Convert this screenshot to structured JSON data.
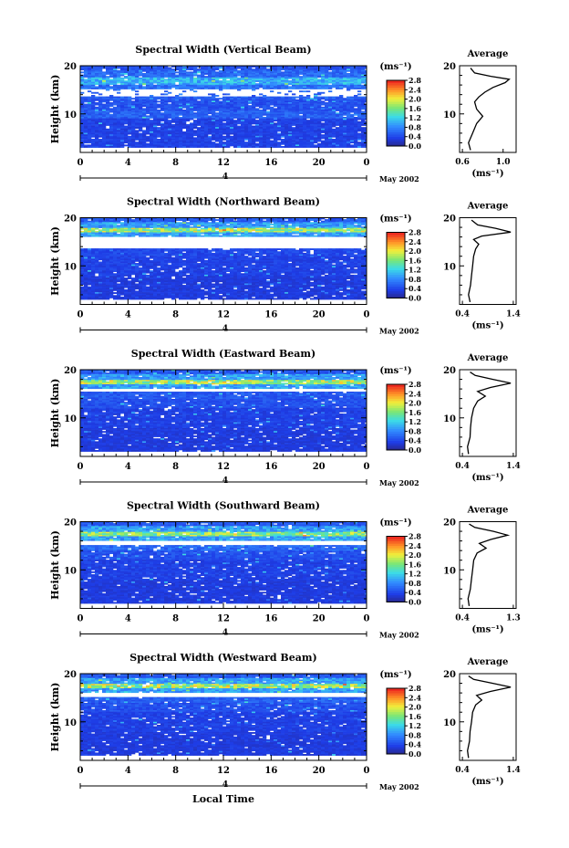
{
  "figure": {
    "date_label": "May 2002",
    "xlabel": "Local Time",
    "date_marker": "4"
  },
  "chart_data": [
    {
      "type": "heatmap",
      "title": "Spectral Width (Vertical Beam)",
      "xlabel": "",
      "ylabel": "Height (km)",
      "xlim": [
        0,
        24
      ],
      "ylim": [
        2,
        20
      ],
      "x_ticks": [
        "0",
        "4",
        "8",
        "12",
        "16",
        "20",
        "0"
      ],
      "y_ticks": [
        "10",
        "20"
      ],
      "colorbar": {
        "unit": "(ms⁻¹)",
        "ticks": [
          "0.0",
          "0.4",
          "0.8",
          "1.2",
          "1.6",
          "2.0",
          "2.4",
          "2.8"
        ],
        "range": [
          0,
          2.8
        ]
      },
      "rows": [
        {
          "h": [
            3,
            9
          ],
          "v": 0.35
        },
        {
          "h": [
            9,
            10.5
          ],
          "v": 0.55
        },
        {
          "h": [
            10.5,
            13
          ],
          "v": 0.45
        },
        {
          "h": [
            13,
            14.5
          ],
          "v": 0.55
        },
        {
          "h": [
            14.5,
            16
          ],
          "v": 0.65
        },
        {
          "h": [
            16,
            17.5
          ],
          "v": 1.0
        },
        {
          "h": [
            17.5,
            19
          ],
          "v": 0.6
        },
        {
          "h": [
            19,
            20
          ],
          "v": 0.45
        }
      ],
      "gaps": [
        [
          13.5,
          15.2
        ]
      ],
      "average": {
        "label": "Average",
        "xlim": [
          0.6,
          1.1
        ],
        "x_ticks": [
          "0.6",
          "1.0"
        ],
        "xlabel": "(ms⁻¹)",
        "profile": [
          [
            2.5,
            0.68
          ],
          [
            4,
            0.66
          ],
          [
            6,
            0.7
          ],
          [
            8,
            0.74
          ],
          [
            9.5,
            0.8
          ],
          [
            10,
            0.78
          ],
          [
            11,
            0.74
          ],
          [
            12.5,
            0.72
          ],
          [
            13.5,
            0.76
          ],
          [
            14.5,
            0.82
          ],
          [
            15.5,
            0.9
          ],
          [
            16.5,
            1.02
          ],
          [
            17.2,
            1.06
          ],
          [
            17.8,
            0.88
          ],
          [
            18.5,
            0.72
          ],
          [
            19.5,
            0.68
          ]
        ]
      }
    },
    {
      "type": "heatmap",
      "title": "Spectral Width (Northward Beam)",
      "xlabel": "",
      "ylabel": "Height (km)",
      "xlim": [
        0,
        24
      ],
      "ylim": [
        2,
        20
      ],
      "x_ticks": [
        "0",
        "4",
        "8",
        "12",
        "16",
        "20",
        "0"
      ],
      "y_ticks": [
        "10",
        "20"
      ],
      "colorbar": {
        "unit": "(ms⁻¹)",
        "ticks": [
          "0.0",
          "0.4",
          "0.8",
          "1.2",
          "1.6",
          "2.0",
          "2.4",
          "2.8"
        ],
        "range": [
          0,
          2.8
        ]
      },
      "rows": [
        {
          "h": [
            3,
            8
          ],
          "v": 0.3
        },
        {
          "h": [
            8,
            12
          ],
          "v": 0.35
        },
        {
          "h": [
            12,
            13.5
          ],
          "v": 0.4
        },
        {
          "h": [
            16,
            17
          ],
          "v": 0.9
        },
        {
          "h": [
            17,
            18
          ],
          "v": 1.7
        },
        {
          "h": [
            18,
            19
          ],
          "v": 0.9
        },
        {
          "h": [
            19,
            20
          ],
          "v": 0.5
        }
      ],
      "gaps": [
        [
          13.5,
          16.0
        ]
      ],
      "average": {
        "label": "Average",
        "xlim": [
          0.4,
          1.4
        ],
        "x_ticks": [
          "0.4",
          "1.4"
        ],
        "xlabel": "(ms⁻¹)",
        "profile": [
          [
            2.5,
            0.55
          ],
          [
            4,
            0.52
          ],
          [
            6,
            0.56
          ],
          [
            8,
            0.58
          ],
          [
            10,
            0.6
          ],
          [
            12,
            0.62
          ],
          [
            13.5,
            0.66
          ],
          [
            14.5,
            0.72
          ],
          [
            15.5,
            0.62
          ],
          [
            16.2,
            0.78
          ],
          [
            17,
            1.35
          ],
          [
            17.8,
            1.05
          ],
          [
            18.5,
            0.7
          ],
          [
            19.5,
            0.58
          ]
        ]
      }
    },
    {
      "type": "heatmap",
      "title": "Spectral Width (Eastward Beam)",
      "xlabel": "",
      "ylabel": "Height (km)",
      "xlim": [
        0,
        24
      ],
      "ylim": [
        2,
        20
      ],
      "x_ticks": [
        "0",
        "4",
        "8",
        "12",
        "16",
        "20",
        "0"
      ],
      "y_ticks": [
        "10",
        "20"
      ],
      "colorbar": {
        "unit": "(ms⁻¹)",
        "ticks": [
          "0.0",
          "0.4",
          "0.8",
          "1.2",
          "1.6",
          "2.0",
          "2.4",
          "2.8"
        ],
        "range": [
          0,
          2.8
        ]
      },
      "rows": [
        {
          "h": [
            3,
            8
          ],
          "v": 0.3
        },
        {
          "h": [
            8,
            12
          ],
          "v": 0.35
        },
        {
          "h": [
            12,
            14
          ],
          "v": 0.45
        },
        {
          "h": [
            14,
            15.5
          ],
          "v": 0.5
        },
        {
          "h": [
            16,
            17
          ],
          "v": 0.9
        },
        {
          "h": [
            17,
            18
          ],
          "v": 1.7
        },
        {
          "h": [
            18,
            19
          ],
          "v": 0.9
        },
        {
          "h": [
            19,
            20
          ],
          "v": 0.5
        }
      ],
      "gaps": [
        [
          15.5,
          16.0
        ]
      ],
      "average": {
        "label": "Average",
        "xlim": [
          0.4,
          1.4
        ],
        "x_ticks": [
          "0.4",
          "1.4"
        ],
        "xlabel": "(ms⁻¹)",
        "profile": [
          [
            2.5,
            0.52
          ],
          [
            4,
            0.5
          ],
          [
            6,
            0.55
          ],
          [
            8,
            0.56
          ],
          [
            10,
            0.58
          ],
          [
            12,
            0.62
          ],
          [
            13.5,
            0.7
          ],
          [
            14.5,
            0.85
          ],
          [
            15.5,
            0.7
          ],
          [
            16.3,
            0.95
          ],
          [
            17.2,
            1.35
          ],
          [
            18,
            1.0
          ],
          [
            18.8,
            0.65
          ],
          [
            19.5,
            0.55
          ]
        ]
      }
    },
    {
      "type": "heatmap",
      "title": "Spectral Width (Southward Beam)",
      "xlabel": "",
      "ylabel": "Height (km)",
      "xlim": [
        0,
        24
      ],
      "ylim": [
        2,
        20
      ],
      "x_ticks": [
        "0",
        "4",
        "8",
        "12",
        "16",
        "20",
        "0"
      ],
      "y_ticks": [
        "10",
        "20"
      ],
      "colorbar": {
        "unit": "(ms⁻¹)",
        "ticks": [
          "0.0",
          "0.4",
          "0.8",
          "1.2",
          "1.6",
          "2.0",
          "2.4",
          "2.8"
        ],
        "range": [
          0,
          2.8
        ]
      },
      "rows": [
        {
          "h": [
            3,
            8
          ],
          "v": 0.3
        },
        {
          "h": [
            8,
            12
          ],
          "v": 0.35
        },
        {
          "h": [
            12,
            14
          ],
          "v": 0.45
        },
        {
          "h": [
            14,
            15
          ],
          "v": 0.6
        },
        {
          "h": [
            16,
            17
          ],
          "v": 0.9
        },
        {
          "h": [
            17,
            18
          ],
          "v": 1.6
        },
        {
          "h": [
            18,
            19
          ],
          "v": 0.9
        },
        {
          "h": [
            19,
            20
          ],
          "v": 0.5
        }
      ],
      "gaps": [
        [
          15.0,
          16.0
        ]
      ],
      "average": {
        "label": "Average",
        "xlim": [
          0.4,
          1.3
        ],
        "x_ticks": [
          "0.4",
          "1.3"
        ],
        "xlabel": "(ms⁻¹)",
        "profile": [
          [
            2.5,
            0.52
          ],
          [
            4,
            0.5
          ],
          [
            6,
            0.54
          ],
          [
            8,
            0.56
          ],
          [
            10,
            0.58
          ],
          [
            12,
            0.6
          ],
          [
            13.5,
            0.66
          ],
          [
            14.5,
            0.82
          ],
          [
            15.5,
            0.7
          ],
          [
            16.3,
            0.9
          ],
          [
            17.2,
            1.2
          ],
          [
            18,
            0.95
          ],
          [
            18.8,
            0.62
          ],
          [
            19.5,
            0.52
          ]
        ]
      }
    },
    {
      "type": "heatmap",
      "title": "Spectral Width (Westward Beam)",
      "xlabel": "Local Time",
      "ylabel": "Height (km)",
      "xlim": [
        0,
        24
      ],
      "ylim": [
        2,
        20
      ],
      "x_ticks": [
        "0",
        "4",
        "8",
        "12",
        "16",
        "20",
        "0"
      ],
      "y_ticks": [
        "10",
        "20"
      ],
      "colorbar": {
        "unit": "(ms⁻¹)",
        "ticks": [
          "0.0",
          "0.4",
          "0.8",
          "1.2",
          "1.6",
          "2.0",
          "2.4",
          "2.8"
        ],
        "range": [
          0,
          2.8
        ]
      },
      "rows": [
        {
          "h": [
            3,
            8
          ],
          "v": 0.3
        },
        {
          "h": [
            8,
            12
          ],
          "v": 0.35
        },
        {
          "h": [
            12,
            14
          ],
          "v": 0.45
        },
        {
          "h": [
            14,
            15
          ],
          "v": 0.55
        },
        {
          "h": [
            16,
            17
          ],
          "v": 0.9
        },
        {
          "h": [
            17,
            18
          ],
          "v": 1.7
        },
        {
          "h": [
            18,
            19
          ],
          "v": 0.9
        },
        {
          "h": [
            19,
            20
          ],
          "v": 0.5
        }
      ],
      "gaps": [
        [
          15.0,
          16.0
        ]
      ],
      "average": {
        "label": "Average",
        "xlim": [
          0.4,
          1.4
        ],
        "x_ticks": [
          "0.4",
          "1.4"
        ],
        "xlabel": "(ms⁻¹)",
        "profile": [
          [
            2.5,
            0.52
          ],
          [
            4,
            0.5
          ],
          [
            6,
            0.54
          ],
          [
            8,
            0.55
          ],
          [
            10,
            0.58
          ],
          [
            12,
            0.6
          ],
          [
            13.5,
            0.66
          ],
          [
            14.5,
            0.78
          ],
          [
            15.5,
            0.68
          ],
          [
            16.3,
            0.95
          ],
          [
            17.2,
            1.35
          ],
          [
            18,
            1.0
          ],
          [
            18.8,
            0.62
          ],
          [
            19.5,
            0.52
          ]
        ]
      }
    }
  ]
}
